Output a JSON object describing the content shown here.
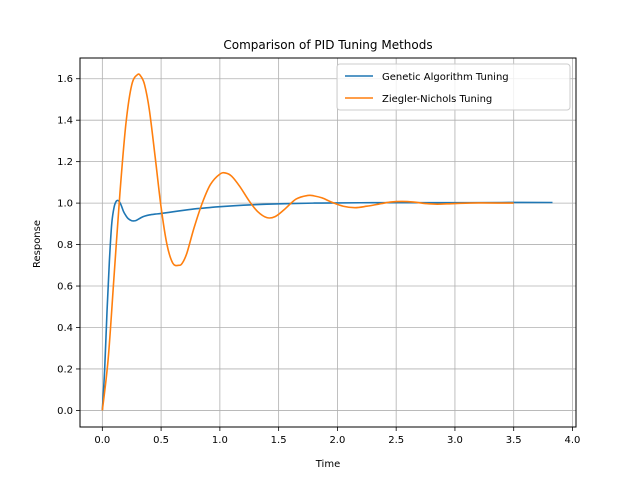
{
  "chart_data": {
    "type": "line",
    "title": "Comparison of PID Tuning Methods",
    "xlabel": "Time",
    "ylabel": "Response",
    "xlim": [
      -0.19,
      4.03
    ],
    "ylim": [
      -0.08,
      1.7
    ],
    "xticks": [
      0.0,
      0.5,
      1.0,
      1.5,
      2.0,
      2.5,
      3.0,
      3.5,
      4.0
    ],
    "xtick_labels": [
      "0.0",
      "0.5",
      "1.0",
      "1.5",
      "2.0",
      "2.5",
      "3.0",
      "3.5",
      "4.0"
    ],
    "yticks": [
      0.0,
      0.2,
      0.4,
      0.6,
      0.8,
      1.0,
      1.2,
      1.4,
      1.6
    ],
    "ytick_labels": [
      "0.0",
      "0.2",
      "0.4",
      "0.6",
      "0.8",
      "1.0",
      "1.2",
      "1.4",
      "1.6"
    ],
    "grid": true,
    "legend_position": "top-right",
    "series": [
      {
        "name": "Genetic Algorithm Tuning",
        "color": "#1f77b4",
        "x": [
          0.0,
          0.02,
          0.04,
          0.06,
          0.08,
          0.1,
          0.12,
          0.14,
          0.16,
          0.18,
          0.2,
          0.22,
          0.25,
          0.28,
          0.3,
          0.33,
          0.36,
          0.4,
          0.45,
          0.5,
          0.6,
          0.7,
          0.8,
          0.9,
          1.0,
          1.2,
          1.4,
          1.6,
          1.8,
          2.0,
          2.3,
          2.6,
          3.0,
          3.4,
          3.83
        ],
        "y": [
          0.0,
          0.2,
          0.48,
          0.72,
          0.9,
          0.98,
          1.01,
          1.01,
          0.99,
          0.96,
          0.94,
          0.925,
          0.915,
          0.915,
          0.92,
          0.93,
          0.937,
          0.943,
          0.947,
          0.95,
          0.958,
          0.966,
          0.973,
          0.978,
          0.983,
          0.99,
          0.995,
          0.998,
          1.0,
          1.001,
          1.002,
          1.002,
          1.002,
          1.003,
          1.003
        ]
      },
      {
        "name": "Ziegler-Nichols Tuning",
        "color": "#ff7f0e",
        "x": [
          0.0,
          0.05,
          0.1,
          0.15,
          0.2,
          0.25,
          0.3,
          0.33,
          0.36,
          0.4,
          0.45,
          0.5,
          0.55,
          0.6,
          0.65,
          0.68,
          0.72,
          0.78,
          0.85,
          0.92,
          1.0,
          1.05,
          1.1,
          1.17,
          1.25,
          1.32,
          1.4,
          1.47,
          1.55,
          1.65,
          1.75,
          1.8,
          1.87,
          1.95,
          2.05,
          2.15,
          2.25,
          2.35,
          2.45,
          2.55,
          2.65,
          2.75,
          2.85,
          3.0,
          3.2,
          3.5
        ],
        "y": [
          0.0,
          0.25,
          0.65,
          1.05,
          1.38,
          1.57,
          1.62,
          1.61,
          1.57,
          1.45,
          1.22,
          0.98,
          0.8,
          0.71,
          0.7,
          0.71,
          0.76,
          0.88,
          1.0,
          1.09,
          1.14,
          1.145,
          1.13,
          1.08,
          1.01,
          0.96,
          0.93,
          0.935,
          0.97,
          1.02,
          1.037,
          1.035,
          1.025,
          1.005,
          0.985,
          0.978,
          0.985,
          0.995,
          1.005,
          1.008,
          1.005,
          0.998,
          0.995,
          0.998,
          1.001,
          1.0
        ]
      }
    ]
  }
}
